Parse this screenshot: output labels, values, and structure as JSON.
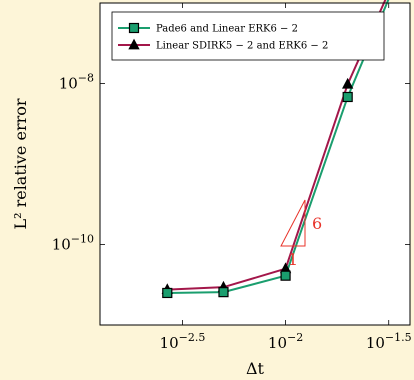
{
  "chart_data": {
    "type": "line",
    "xscale": "log",
    "yscale": "log",
    "xlabel": "Δt",
    "ylabel": "L² relative error",
    "xlim": [
      0.00126,
      0.0401
    ],
    "ylim": [
      1e-11,
      1e-07
    ],
    "xticks": [
      {
        "value": 0.0031623,
        "base": "10",
        "exp": "−2.5"
      },
      {
        "value": 0.01,
        "base": "10",
        "exp": "−2"
      },
      {
        "value": 0.031623,
        "base": "10",
        "exp": "−1.5"
      }
    ],
    "yticks": [
      {
        "value": 1e-08,
        "base": "10",
        "exp": "−8"
      },
      {
        "value": 1e-10,
        "base": "10",
        "exp": "−10"
      }
    ],
    "legend_position": "top-left",
    "series": [
      {
        "name": "Pade6 and Linear ERK6 − 2",
        "color": "#1a9e6e",
        "marker": "square",
        "x": [
          0.00267,
          0.005,
          0.01,
          0.02,
          0.0373
        ],
        "y": [
          2.5e-11,
          2.56e-11,
          4.1e-11,
          6.8e-09,
          3.1e-07
        ]
      },
      {
        "name": "Linear SDIRK5 − 2 and ERK6 − 2",
        "color": "#a3174a",
        "marker": "triangle",
        "x": [
          0.00267,
          0.005,
          0.01,
          0.02,
          0.0373
        ],
        "y": [
          2.75e-11,
          2.95e-11,
          5e-11,
          9.8e-09,
          3.5e-07
        ]
      }
    ],
    "slope_triangle": {
      "color": "#e8332a",
      "run_label": "1",
      "rise_label": "6"
    }
  }
}
